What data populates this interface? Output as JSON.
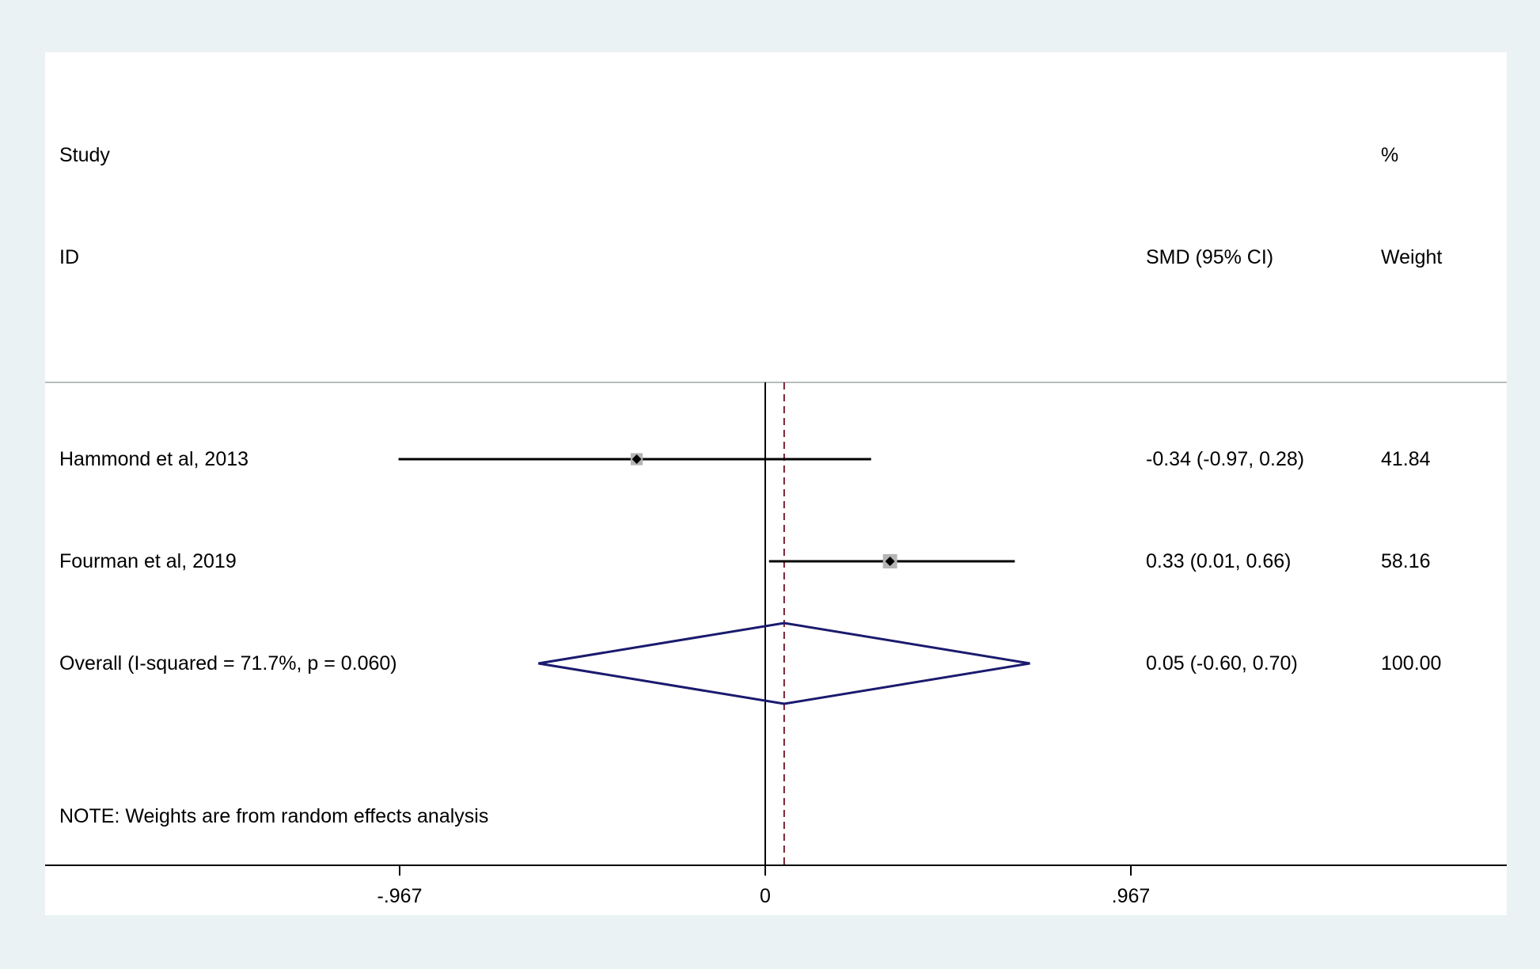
{
  "colors": {
    "background": "#eaf2f3",
    "panel": "#ffffff",
    "ci_line": "#000000",
    "weight_box": "#b4b4b4",
    "point": "#000000",
    "overall_diamond": "#1a1a6e",
    "overall_line": "#7a2030",
    "null_line": "#000000",
    "separator": "#b8bcbe"
  },
  "chart_data": {
    "type": "forest",
    "header": {
      "study_line1": "Study",
      "study_line2": "ID",
      "effect_label": "SMD (95% CI)",
      "weight_line1": "%",
      "weight_line2": "Weight"
    },
    "studies": [
      {
        "label": "Hammond et al, 2013",
        "smd": -0.34,
        "lower": -0.97,
        "upper": 0.28,
        "ci_text": "-0.34 (-0.97, 0.28)",
        "weight": 41.84,
        "weight_text": "41.84"
      },
      {
        "label": "Fourman et al, 2019",
        "smd": 0.33,
        "lower": 0.01,
        "upper": 0.66,
        "ci_text": "0.33 (0.01, 0.66)",
        "weight": 58.16,
        "weight_text": "58.16"
      }
    ],
    "overall": {
      "label": "Overall  (I-squared = 71.7%, p = 0.060)",
      "smd": 0.05,
      "lower": -0.6,
      "upper": 0.7,
      "ci_text": "0.05 (-0.60, 0.70)",
      "weight_text": "100.00"
    },
    "note": "NOTE: Weights are from random effects analysis",
    "x_ticks": [
      {
        "value": -0.967,
        "label": "-.967"
      },
      {
        "value": 0,
        "label": "0"
      },
      {
        "value": 0.967,
        "label": ".967"
      }
    ],
    "null_value": 0
  }
}
